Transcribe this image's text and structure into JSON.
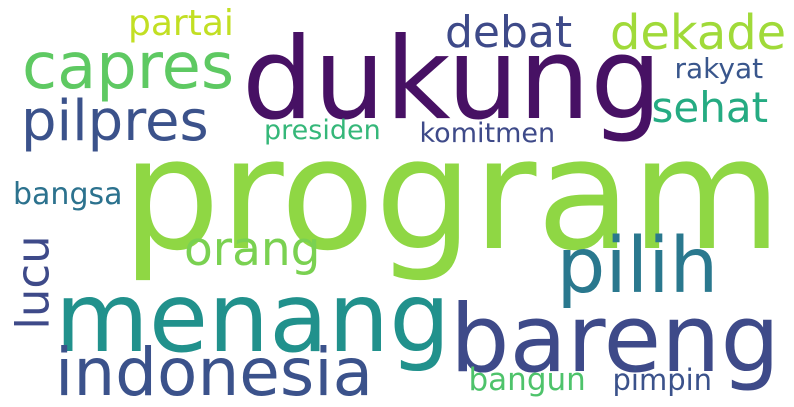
{
  "word_cloud": {
    "words": [
      {
        "key": "program",
        "text": "program",
        "color": "#8fd744"
      },
      {
        "key": "dukung",
        "text": "dukung",
        "color": "#471164"
      },
      {
        "key": "menang",
        "text": "menang",
        "color": "#21918c"
      },
      {
        "key": "bareng",
        "text": "bareng",
        "color": "#3e4a89"
      },
      {
        "key": "pilih",
        "text": "pilih",
        "color": "#2a788e"
      },
      {
        "key": "indonesia",
        "text": "indonesia",
        "color": "#3b528b"
      },
      {
        "key": "capres",
        "text": "capres",
        "color": "#5ec962"
      },
      {
        "key": "pilpres",
        "text": "pilpres",
        "color": "#3b528b"
      },
      {
        "key": "debat",
        "text": "debat",
        "color": "#3e4a89"
      },
      {
        "key": "dekade",
        "text": "dekade",
        "color": "#a0da39"
      },
      {
        "key": "orang",
        "text": "orang",
        "color": "#7ad151"
      },
      {
        "key": "sehat",
        "text": "sehat",
        "color": "#25ab82"
      },
      {
        "key": "lucu",
        "text": "lucu",
        "color": "#3e4a89"
      },
      {
        "key": "partai",
        "text": "partai",
        "color": "#c2df23"
      },
      {
        "key": "rakyat",
        "text": "rakyat",
        "color": "#39568c"
      },
      {
        "key": "presiden",
        "text": "presiden",
        "color": "#35b779"
      },
      {
        "key": "komitmen",
        "text": "komitmen",
        "color": "#3e4a89"
      },
      {
        "key": "bangsa",
        "text": "bangsa",
        "color": "#2c728e"
      },
      {
        "key": "bangun",
        "text": "bangun",
        "color": "#4ec36b"
      },
      {
        "key": "pimpin",
        "text": "pimpin",
        "color": "#3b528b"
      }
    ]
  }
}
